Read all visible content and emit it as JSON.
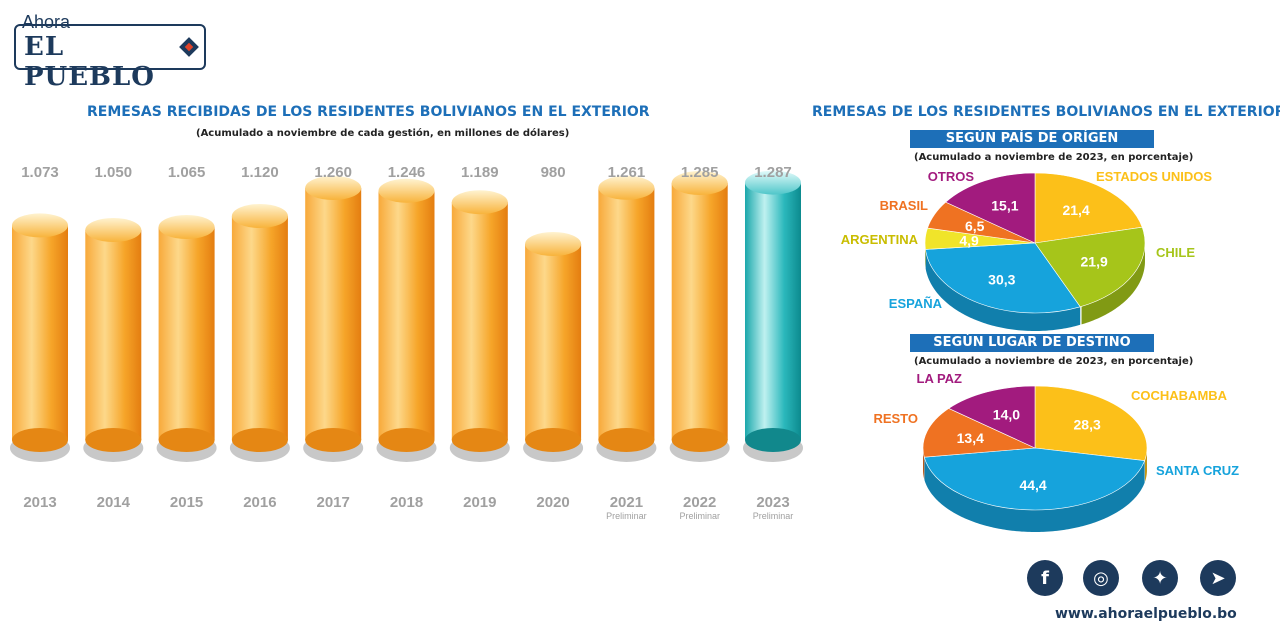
{
  "brand": {
    "ahora": "Ahora",
    "name": "EL PUEBLO",
    "website": "www.ahoraelpueblo.bo"
  },
  "left": {
    "title": "REMESAS RECIBIDAS DE LOS RESIDENTES BOLIVIANOS EN EL EXTERIOR",
    "subtitle": "(Acumulado a noviembre de cada gestión, en millones de dólares)"
  },
  "right": {
    "title": "REMESAS DE LOS RESIDENTES BOLIVIANOS EN EL EXTERIOR",
    "pie1_header": "SEGÚN PAÍS DE ORÍGEN",
    "pie1_subtitle": "(Acumulado a noviembre de 2023, en porcentaje)",
    "pie2_header": "SEGÚN LUGAR DE DESTINO",
    "pie2_subtitle": "(Acumulado a noviembre de 2023, en porcentaje)"
  },
  "chart_data": [
    {
      "type": "bar",
      "categories": [
        "2013",
        "2014",
        "2015",
        "2016",
        "2017",
        "2018",
        "2019",
        "2020",
        "2021",
        "2022",
        "2023"
      ],
      "values": [
        1073,
        1050,
        1065,
        1120,
        1260,
        1246,
        1189,
        980,
        1261,
        1285,
        1287
      ],
      "value_labels": [
        "1.073",
        "1.050",
        "1.065",
        "1.120",
        "1.260",
        "1.246",
        "1.189",
        "980",
        "1.261",
        "1.285",
        "1.287"
      ],
      "category_notes": [
        "",
        "",
        "",
        "",
        "",
        "",
        "",
        "",
        "Preliminar",
        "Preliminar",
        "Preliminar"
      ],
      "colors": {
        "default": "#f59a1c",
        "highlight": "#1aaeb3",
        "highlight_index": 10,
        "label": "#a0a0a0"
      }
    },
    {
      "type": "pie",
      "labels": [
        "ESTADOS UNIDOS",
        "CHILE",
        "ESPAÑA",
        "ARGENTINA",
        "BRASIL",
        "OTROS"
      ],
      "values": [
        21.4,
        21.9,
        30.3,
        4.9,
        6.5,
        15.1
      ],
      "value_labels": [
        "21,4",
        "21,9",
        "30,3",
        "4,9",
        "6,5",
        "15,1"
      ],
      "colors": [
        "#fcc019",
        "#a6c51a",
        "#16a3dc",
        "#f0e42a",
        "#ef7222",
        "#a21b7e"
      ]
    },
    {
      "type": "pie",
      "labels": [
        "COCHABAMBA",
        "SANTA CRUZ",
        "RESTO",
        "LA PAZ"
      ],
      "values": [
        28.3,
        44.4,
        13.4,
        14.0
      ],
      "value_labels": [
        "28,3",
        "44,4",
        "13,4",
        "14,0"
      ],
      "colors": [
        "#fcc019",
        "#16a3dc",
        "#ef7222",
        "#a21b7e"
      ]
    }
  ],
  "social": [
    {
      "name": "facebook-icon",
      "glyph": "f"
    },
    {
      "name": "instagram-icon",
      "glyph": "◎"
    },
    {
      "name": "twitter-icon",
      "glyph": "✦"
    },
    {
      "name": "telegram-icon",
      "glyph": "➤"
    }
  ]
}
